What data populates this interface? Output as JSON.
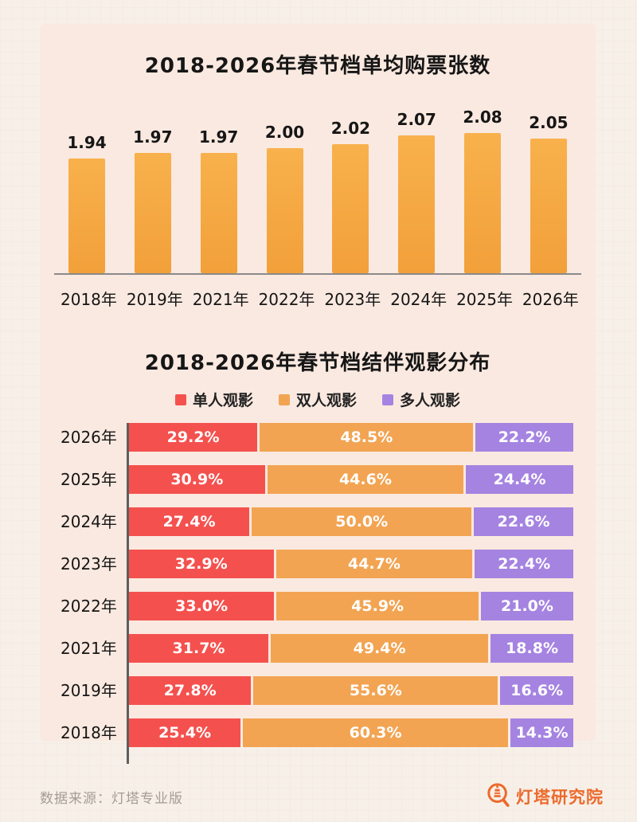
{
  "colors": {
    "single": "#f4514e",
    "double": "#f2a452",
    "multi": "#a583e1",
    "bar_top": "#f8b14c",
    "bar_bottom": "#f2a03a",
    "card_bg": "#fae9e0",
    "page_bg": "#f7f0e8",
    "axis": "#8a8a8a",
    "title": "#161616",
    "footer_text": "#a49d94",
    "brand_orange": "#ec6a2d"
  },
  "chart_data": [
    {
      "type": "bar",
      "title": "2018-2026年春节档单均购票张数",
      "categories": [
        "2018年",
        "2019年",
        "2021年",
        "2022年",
        "2023年",
        "2024年",
        "2025年",
        "2026年"
      ],
      "values": [
        1.94,
        1.97,
        1.97,
        2.0,
        2.02,
        2.07,
        2.08,
        2.05
      ],
      "value_labels": [
        "1.94",
        "1.97",
        "1.97",
        "2.00",
        "2.02",
        "2.07",
        "2.08",
        "2.05"
      ],
      "xlabel": "",
      "ylabel": "",
      "ylim": [
        1.3,
        2.1
      ],
      "grid": false,
      "bar_color": "orange-gradient"
    },
    {
      "type": "stacked-bar-horizontal",
      "title": "2018-2026年春节档结伴观影分布",
      "categories": [
        "2026年",
        "2025年",
        "2024年",
        "2023年",
        "2022年",
        "2021年",
        "2019年",
        "2018年"
      ],
      "legend": [
        "单人观影",
        "双人观影",
        "多人观影"
      ],
      "legend_position": "top-center",
      "unit": "%",
      "xlim": [
        0,
        100
      ],
      "series": [
        {
          "name": "单人观影",
          "color_key": "single",
          "values": [
            29.2,
            30.9,
            27.4,
            32.9,
            33.0,
            31.7,
            27.8,
            25.4
          ]
        },
        {
          "name": "双人观影",
          "color_key": "double",
          "values": [
            48.5,
            44.6,
            50.0,
            44.7,
            45.9,
            49.4,
            55.6,
            60.3
          ]
        },
        {
          "name": "多人观影",
          "color_key": "multi",
          "values": [
            22.2,
            24.4,
            22.6,
            22.4,
            21.0,
            18.8,
            16.6,
            14.3
          ]
        }
      ]
    }
  ],
  "footer": {
    "source": "数据来源：灯塔专业版",
    "brand": "灯塔研究院",
    "logo_icon": "dengta-lantern-magnifier-icon"
  }
}
